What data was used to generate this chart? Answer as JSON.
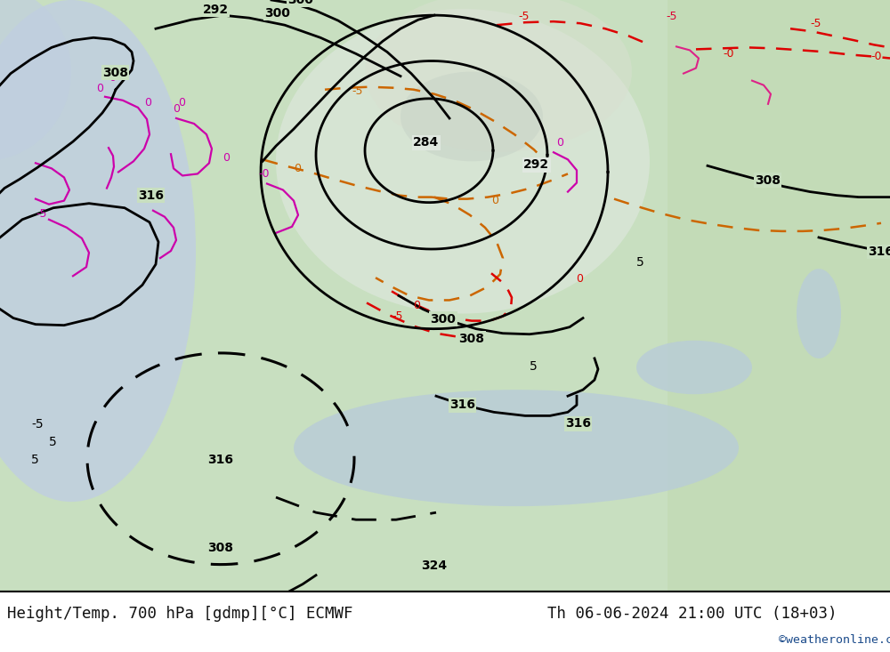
{
  "title_left": "Height/Temp. 700 hPa [gdmp][°C] ECMWF",
  "title_right": "Th 06-06-2024 21:00 UTC (18+03)",
  "credit": "©weatheronline.co.uk",
  "map_bg": "#d8e8d0",
  "sea_color": "#c8d8e8",
  "land_light": "#c8e0c0",
  "gray_region": "#c8c8c8",
  "white_region": "#e8e8e8",
  "fig_bg": "#ffffff",
  "bottom_bar": "#ffffff",
  "title_color": "#111111",
  "credit_color": "#1a4a8a"
}
